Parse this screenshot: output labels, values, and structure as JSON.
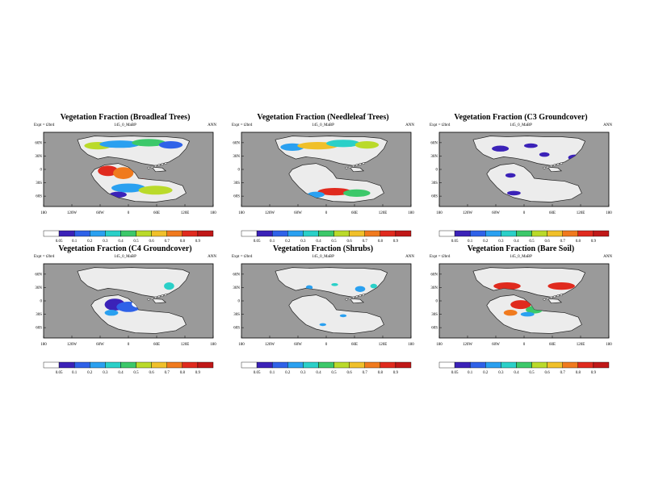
{
  "palette": [
    "#ffffff",
    "#3b22b8",
    "#2f62e8",
    "#2aa0f0",
    "#2ad0c8",
    "#3cc86a",
    "#bada2a",
    "#f0c02a",
    "#f07a1e",
    "#e02a1e",
    "#c01818"
  ],
  "ocean_color": "#9a9a9a",
  "land_color": "#ececec",
  "chart_data": [
    {
      "type": "heatmap",
      "title": "Vegetation Fraction (Broadleaf Trees)",
      "subtitle": "145_0_MaBP",
      "left_label": "Expt = t2brd",
      "right_label": "ANN",
      "ylabels": [
        "60N",
        "30N",
        "0",
        "30S",
        "60S"
      ],
      "xlabels": [
        "180",
        "120W",
        "60W",
        "0",
        "60E",
        "120E",
        "180"
      ],
      "colorbar": [
        "0.05",
        "0.1",
        "0.2",
        "0.3",
        "0.4",
        "0.5",
        "0.6",
        "0.7",
        "0.8",
        "0.9"
      ]
    },
    {
      "type": "heatmap",
      "title": "Vegetation Fraction (Needleleaf Trees)",
      "subtitle": "145_0_MaBP",
      "left_label": "Expt = t2brd",
      "right_label": "ANN",
      "ylabels": [
        "60N",
        "30N",
        "0",
        "30S",
        "60S"
      ],
      "xlabels": [
        "180",
        "120W",
        "60W",
        "0",
        "60E",
        "120E",
        "180"
      ],
      "colorbar": [
        "0.05",
        "0.1",
        "0.2",
        "0.3",
        "0.4",
        "0.5",
        "0.6",
        "0.7",
        "0.8",
        "0.9"
      ]
    },
    {
      "type": "heatmap",
      "title": "Vegetation Fraction (C3 Groundcover)",
      "subtitle": "145_0_MaBP",
      "left_label": "Expt = t2brd",
      "right_label": "ANN",
      "ylabels": [
        "60N",
        "30N",
        "0",
        "30S",
        "60S"
      ],
      "xlabels": [
        "180",
        "120W",
        "60W",
        "0",
        "60E",
        "120E",
        "180"
      ],
      "colorbar": [
        "0.05",
        "0.1",
        "0.2",
        "0.3",
        "0.4",
        "0.5",
        "0.6",
        "0.7",
        "0.8",
        "0.9"
      ]
    },
    {
      "type": "heatmap",
      "title": "Vegetation Fraction (C4 Groundcover)",
      "subtitle": "145_0_MaBP",
      "left_label": "Expt = t2brd",
      "right_label": "ANN",
      "ylabels": [
        "60N",
        "30N",
        "0",
        "30S",
        "60S"
      ],
      "xlabels": [
        "180",
        "120W",
        "60W",
        "0",
        "60E",
        "120E",
        "180"
      ],
      "colorbar": [
        "0.05",
        "0.1",
        "0.2",
        "0.3",
        "0.4",
        "0.5",
        "0.6",
        "0.7",
        "0.8",
        "0.9"
      ]
    },
    {
      "type": "heatmap",
      "title": "Vegetation Fraction (Shrubs)",
      "subtitle": "145_0_MaBP",
      "left_label": "Expt = t2brd",
      "right_label": "ANN",
      "ylabels": [
        "60N",
        "30N",
        "0",
        "30S",
        "60S"
      ],
      "xlabels": [
        "180",
        "120W",
        "60W",
        "0",
        "60E",
        "120E",
        "180"
      ],
      "colorbar": [
        "0.05",
        "0.1",
        "0.2",
        "0.3",
        "0.4",
        "0.5",
        "0.6",
        "0.7",
        "0.8",
        "0.9"
      ]
    },
    {
      "type": "heatmap",
      "title": "Vegetation Fraction (Bare Soil)",
      "subtitle": "145_0_MaBP",
      "left_label": "Expt = t2brd",
      "right_label": "ANN",
      "ylabels": [
        "60N",
        "30N",
        "0",
        "30S",
        "60S"
      ],
      "xlabels": [
        "180",
        "120W",
        "60W",
        "0",
        "60E",
        "120E",
        "180"
      ],
      "colorbar": [
        "0.05",
        "0.1",
        "0.2",
        "0.3",
        "0.4",
        "0.5",
        "0.6",
        "0.7",
        "0.8",
        "0.9"
      ]
    }
  ]
}
